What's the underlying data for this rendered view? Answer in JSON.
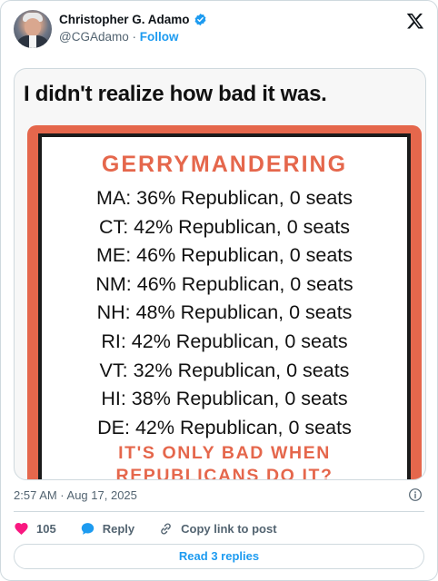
{
  "author": {
    "name": "Christopher G. Adamo",
    "handle": "@CGAdamo",
    "separator": "·",
    "follow_label": "Follow"
  },
  "post": {
    "image": {
      "headline": "I didn't realize how bad it was.",
      "poster_title": "GERRYMANDERING",
      "rows": [
        "MA: 36% Republican, 0 seats",
        "CT: 42% Republican, 0 seats",
        "ME: 46% Republican, 0 seats",
        "NM: 46% Republican, 0 seats",
        "NH: 48% Republican, 0 seats",
        "RI: 42% Republican, 0 seats",
        "VT: 32% Republican, 0 seats",
        "HI: 38% Republican, 0 seats",
        "DE: 42% Republican, 0 seats"
      ],
      "slogan_line1": "IT'S ONLY BAD WHEN",
      "slogan_line2": "REPUBLICANS DO IT?"
    },
    "timestamp": "2:57 AM · Aug 17, 2025"
  },
  "actions": {
    "like_count": "105",
    "reply_label": "Reply",
    "copy_label": "Copy link to post"
  },
  "read_replies_label": "Read 3 replies",
  "colors": {
    "accent": "#1d9bf0",
    "poster_red": "#e5674c",
    "like_pink": "#f91880",
    "muted_text": "#536471"
  },
  "icons": [
    "verified-badge-icon",
    "x-logo-icon",
    "info-icon",
    "heart-icon",
    "reply-bubble-icon",
    "link-icon"
  ]
}
